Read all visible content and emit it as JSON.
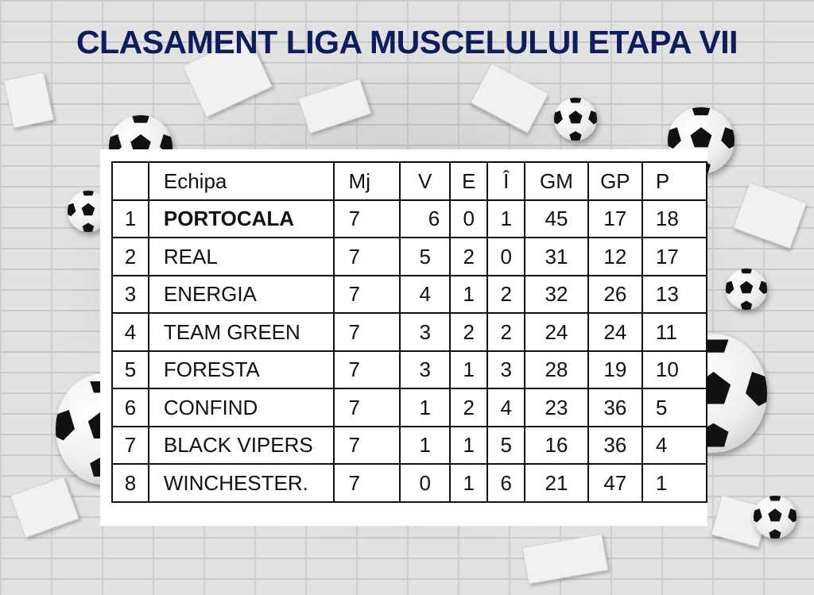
{
  "title": "CLASAMENT LIGA MUSCELULUI ETAPA VII",
  "table": {
    "headers": [
      "",
      "Echipa",
      "Mj",
      "V",
      "E",
      "Î",
      "GM",
      "GP",
      "P"
    ],
    "rows": [
      {
        "pos": "1",
        "team": "PORTOCALA",
        "mj": "7",
        "v": "6",
        "e": "0",
        "i": "1",
        "gm": "45",
        "gp": "17",
        "p": "18"
      },
      {
        "pos": "2",
        "team": "REAL",
        "mj": "7",
        "v": "5",
        "e": "2",
        "i": "0",
        "gm": "31",
        "gp": "12",
        "p": "17"
      },
      {
        "pos": "3",
        "team": "ENERGIA",
        "mj": "7",
        "v": "4",
        "e": "1",
        "i": "2",
        "gm": "32",
        "gp": "26",
        "p": "13"
      },
      {
        "pos": "4",
        "team": "TEAM GREEN",
        "mj": "7",
        "v": "3",
        "e": "2",
        "i": "2",
        "gm": "24",
        "gp": "24",
        "p": "11"
      },
      {
        "pos": "5",
        "team": "FORESTA",
        "mj": "7",
        "v": "3",
        "e": "1",
        "i": "3",
        "gm": "28",
        "gp": "19",
        "p": "10"
      },
      {
        "pos": "6",
        "team": "CONFIND",
        "mj": "7",
        "v": "1",
        "e": "2",
        "i": "4",
        "gm": "23",
        "gp": "36",
        "p": "5"
      },
      {
        "pos": "7",
        "team": "BLACK VIPERS",
        "mj": "7",
        "v": "1",
        "e": "1",
        "i": "5",
        "gm": "16",
        "gp": "36",
        "p": "4"
      },
      {
        "pos": "8",
        "team": "WINCHESTER.",
        "mj": "7",
        "v": "0",
        "e": "1",
        "i": "6",
        "gm": "21",
        "gp": "47",
        "p": "1"
      }
    ]
  },
  "colors": {
    "title": "#0f1d5c",
    "background": "#e2e2e2",
    "panel": "#ffffff"
  },
  "decorations": {
    "background": "brick-wall",
    "balls": [
      "soccer-ball-icon"
    ]
  }
}
